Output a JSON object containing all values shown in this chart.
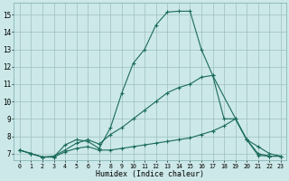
{
  "bg_color": "#cce8e8",
  "grid_color": "#9dbfbf",
  "line_color": "#1a6b5a",
  "xlabel": "Humidex (Indice chaleur)",
  "xlim": [
    -0.5,
    23.5
  ],
  "ylim": [
    6.6,
    15.7
  ],
  "xticks": [
    0,
    1,
    2,
    3,
    4,
    5,
    6,
    7,
    8,
    9,
    10,
    11,
    12,
    13,
    14,
    15,
    16,
    17,
    18,
    19,
    20,
    21,
    22,
    23
  ],
  "yticks": [
    7,
    8,
    9,
    10,
    11,
    12,
    13,
    14,
    15
  ],
  "line1_x": [
    0,
    1,
    2,
    3,
    4,
    5,
    6,
    7,
    8,
    9,
    10,
    11,
    12,
    13,
    14,
    15,
    16,
    17,
    20,
    21,
    22,
    23
  ],
  "line1_y": [
    7.2,
    7.0,
    6.8,
    6.8,
    7.5,
    7.8,
    7.7,
    7.3,
    8.5,
    10.5,
    12.2,
    13.0,
    14.4,
    15.15,
    15.2,
    15.2,
    13.0,
    11.5,
    7.8,
    7.4,
    7.0,
    6.85
  ],
  "line2_x": [
    0,
    1,
    2,
    3,
    4,
    5,
    6,
    7,
    8,
    9,
    10,
    11,
    12,
    13,
    14,
    15,
    16,
    17,
    18,
    19,
    20,
    21,
    22,
    23
  ],
  "line2_y": [
    7.2,
    7.0,
    6.8,
    6.85,
    7.2,
    7.6,
    7.8,
    7.55,
    8.1,
    8.5,
    9.0,
    9.5,
    10.0,
    10.5,
    10.8,
    11.0,
    11.4,
    11.5,
    9.0,
    9.0,
    7.8,
    7.0,
    6.85,
    6.85
  ],
  "line3_x": [
    0,
    1,
    2,
    3,
    4,
    5,
    6,
    7,
    8,
    9,
    10,
    11,
    12,
    13,
    14,
    15,
    16,
    17,
    18,
    19,
    20,
    21,
    22,
    23
  ],
  "line3_y": [
    7.2,
    7.0,
    6.8,
    6.8,
    7.1,
    7.3,
    7.4,
    7.2,
    7.2,
    7.3,
    7.4,
    7.5,
    7.6,
    7.7,
    7.8,
    7.9,
    8.1,
    8.3,
    8.6,
    9.0,
    7.8,
    6.9,
    6.85,
    6.85
  ]
}
